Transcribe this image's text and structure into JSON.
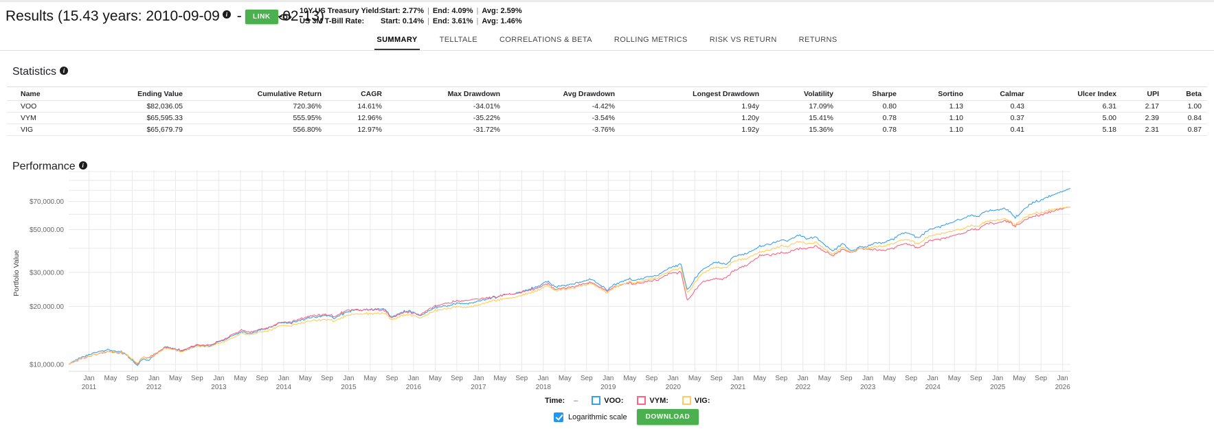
{
  "header": {
    "title": "Results",
    "period_prefix": "(15.43 years: 2010-09-09",
    "period_suffix": " - 2026-02-13)",
    "link_button": "LINK",
    "rates_separator": "|",
    "rates": [
      {
        "label": "10Y US Treasury Yield:",
        "start": "Start: 2.77%",
        "end": "End: 4.09%",
        "avg": "Avg: 2.59%"
      },
      {
        "label": "US 3M T-Bill Rate:",
        "start": "Start: 0.14%",
        "end": "End: 3.61%",
        "avg": "Avg: 1.46%"
      }
    ]
  },
  "tabs": {
    "items": [
      "SUMMARY",
      "TELLTALE",
      "CORRELATIONS & BETA",
      "ROLLING METRICS",
      "RISK VS RETURN",
      "RETURNS"
    ],
    "active": "SUMMARY"
  },
  "statistics": {
    "heading": "Statistics",
    "columns": [
      "Name",
      "Ending Value",
      "Cumulative Return",
      "CAGR",
      "Max Drawdown",
      "Avg Drawdown",
      "Longest Drawdown",
      "Volatility",
      "Sharpe",
      "Sortino",
      "Calmar",
      "Ulcer Index",
      "UPI",
      "Beta"
    ],
    "rows": [
      [
        "VOO",
        "$82,036.05",
        "720.36%",
        "14.61%",
        "-34.01%",
        "-4.42%",
        "1.94y",
        "17.09%",
        "0.80",
        "1.13",
        "0.43",
        "6.31",
        "2.17",
        "1.00"
      ],
      [
        "VYM",
        "$65,595.33",
        "555.95%",
        "12.96%",
        "-35.22%",
        "-3.54%",
        "1.20y",
        "15.41%",
        "0.78",
        "1.10",
        "0.37",
        "5.00",
        "2.39",
        "0.84"
      ],
      [
        "VIG",
        "$65,679.79",
        "556.80%",
        "12.97%",
        "-31.72%",
        "-3.76%",
        "1.92y",
        "15.36%",
        "0.78",
        "1.10",
        "0.41",
        "5.18",
        "2.31",
        "0.87"
      ]
    ]
  },
  "performance": {
    "heading": "Performance"
  },
  "chart_data": {
    "type": "line",
    "title": "Performance",
    "y_axis_label": "Portfolio Value",
    "y_scale": "log",
    "x_start_date": "2010-09-09",
    "x_end_date": "2026-02-13",
    "x_range": [
      2010.688,
      2026.12
    ],
    "month_tick_labels": [
      "Jan",
      "May",
      "Sep"
    ],
    "year_ticks": [
      2011,
      2012,
      2013,
      2014,
      2015,
      2016,
      2017,
      2018,
      2019,
      2020,
      2021,
      2022,
      2023,
      2024,
      2025,
      2026
    ],
    "y_ticks": [
      {
        "value": 10000,
        "label": "$10,000.00"
      },
      {
        "value": 20000,
        "label": "$20,000.00"
      },
      {
        "value": 30000,
        "label": "$30,000.00"
      },
      {
        "value": 50000,
        "label": "$50,000.00"
      },
      {
        "value": 70000,
        "label": "$70,000.00"
      }
    ],
    "series": [
      {
        "name": "VOO",
        "color": "#36a2eb",
        "col": 1
      },
      {
        "name": "VYM",
        "color": "#ff6384",
        "col": 2
      },
      {
        "name": "VIG",
        "color": "#ffce56",
        "col": 3
      }
    ],
    "anchors": [
      [
        2010.688,
        10000,
        10000,
        10000
      ],
      [
        2010.8,
        10600,
        10450,
        10500
      ],
      [
        2010.92,
        11000,
        10800,
        10850
      ],
      [
        2011.12,
        11650,
        11350,
        11400
      ],
      [
        2011.33,
        11900,
        11650,
        11700
      ],
      [
        2011.55,
        11500,
        11400,
        11450
      ],
      [
        2011.63,
        10700,
        10800,
        10850
      ],
      [
        2011.75,
        9950,
        10150,
        10250
      ],
      [
        2011.83,
        10700,
        10900,
        10950
      ],
      [
        2011.92,
        10500,
        10800,
        10800
      ],
      [
        2012.0,
        11100,
        11300,
        11150
      ],
      [
        2012.18,
        12400,
        12250,
        12150
      ],
      [
        2012.42,
        11700,
        11800,
        11600
      ],
      [
        2012.6,
        12300,
        12450,
        12200
      ],
      [
        2012.7,
        12600,
        12700,
        12450
      ],
      [
        2012.85,
        12400,
        12550,
        12300
      ],
      [
        2012.95,
        12900,
        12950,
        12700
      ],
      [
        2013.15,
        13700,
        13900,
        13400
      ],
      [
        2013.35,
        14800,
        15050,
        14500
      ],
      [
        2013.48,
        14400,
        14650,
        14200
      ],
      [
        2013.65,
        15100,
        15200,
        14700
      ],
      [
        2013.8,
        15600,
        15700,
        15100
      ],
      [
        2013.95,
        16400,
        16500,
        15900
      ],
      [
        2014.1,
        16300,
        16500,
        15800
      ],
      [
        2014.25,
        16900,
        17200,
        16300
      ],
      [
        2014.45,
        17600,
        17950,
        16900
      ],
      [
        2014.7,
        17900,
        18100,
        17100
      ],
      [
        2014.78,
        17400,
        17700,
        16700
      ],
      [
        2014.95,
        18600,
        18950,
        17800
      ],
      [
        2015.12,
        19200,
        19250,
        18300
      ],
      [
        2015.4,
        19300,
        19200,
        18350
      ],
      [
        2015.55,
        19400,
        19100,
        18400
      ],
      [
        2015.62,
        18300,
        18000,
        17600
      ],
      [
        2015.67,
        17500,
        17300,
        16900
      ],
      [
        2015.85,
        18900,
        18700,
        18100
      ],
      [
        2015.95,
        18800,
        18600,
        18000
      ],
      [
        2016.1,
        17900,
        18100,
        17400
      ],
      [
        2016.3,
        19500,
        19900,
        18900
      ],
      [
        2016.52,
        20300,
        20900,
        19600
      ],
      [
        2016.7,
        20700,
        21300,
        19900
      ],
      [
        2016.85,
        20700,
        21500,
        19800
      ],
      [
        2016.95,
        21100,
        21850,
        20200
      ],
      [
        2017.2,
        22200,
        22300,
        21300
      ],
      [
        2017.45,
        23000,
        23050,
        22000
      ],
      [
        2017.7,
        23900,
        23700,
        22900
      ],
      [
        2017.95,
        25700,
        25200,
        24500
      ],
      [
        2018.07,
        27200,
        26400,
        25800
      ],
      [
        2018.18,
        25100,
        24500,
        24100
      ],
      [
        2018.25,
        25500,
        24800,
        24400
      ],
      [
        2018.5,
        26200,
        25300,
        25000
      ],
      [
        2018.73,
        27700,
        26700,
        26300
      ],
      [
        2018.9,
        25600,
        24900,
        24500
      ],
      [
        2018.98,
        24200,
        23900,
        23500
      ],
      [
        2019.1,
        26000,
        25300,
        25100
      ],
      [
        2019.33,
        27900,
        26600,
        26900
      ],
      [
        2019.42,
        27200,
        26100,
        26400
      ],
      [
        2019.58,
        28500,
        27000,
        27600
      ],
      [
        2019.75,
        28900,
        27400,
        28100
      ],
      [
        2019.95,
        31700,
        29700,
        30500
      ],
      [
        2020.12,
        33100,
        30100,
        31600
      ],
      [
        2020.22,
        24200,
        21400,
        23400
      ],
      [
        2020.35,
        28300,
        24500,
        27000
      ],
      [
        2020.45,
        30900,
        26600,
        29600
      ],
      [
        2020.65,
        33900,
        27900,
        32000
      ],
      [
        2020.75,
        33500,
        27700,
        31700
      ],
      [
        2020.83,
        33200,
        28300,
        31800
      ],
      [
        2020.95,
        36600,
        30900,
        34700
      ],
      [
        2021.1,
        37200,
        32300,
        35000
      ],
      [
        2021.35,
        41100,
        36800,
        38400
      ],
      [
        2021.55,
        42800,
        37400,
        40000
      ],
      [
        2021.7,
        44500,
        38200,
        41500
      ],
      [
        2021.75,
        43600,
        37900,
        40700
      ],
      [
        2021.95,
        47100,
        40000,
        43600
      ],
      [
        2022.05,
        44700,
        39700,
        42000
      ],
      [
        2022.2,
        46000,
        41200,
        43100
      ],
      [
        2022.35,
        41500,
        38500,
        39600
      ],
      [
        2022.45,
        38700,
        36600,
        37400
      ],
      [
        2022.62,
        42300,
        39500,
        40500
      ],
      [
        2022.75,
        38600,
        37900,
        38100
      ],
      [
        2022.88,
        40900,
        40300,
        40200
      ],
      [
        2022.95,
        40600,
        39800,
        39800
      ],
      [
        2023.1,
        42500,
        39500,
        40800
      ],
      [
        2023.25,
        42800,
        39000,
        40900
      ],
      [
        2023.4,
        44700,
        39900,
        42200
      ],
      [
        2023.55,
        48600,
        42700,
        44700
      ],
      [
        2023.78,
        45600,
        40100,
        42300
      ],
      [
        2023.95,
        50200,
        44000,
        46500
      ],
      [
        2024.1,
        51500,
        44400,
        47200
      ],
      [
        2024.3,
        54500,
        46300,
        49100
      ],
      [
        2024.5,
        57800,
        48200,
        51000
      ],
      [
        2024.6,
        59500,
        50500,
        52600
      ],
      [
        2024.7,
        58700,
        50200,
        52100
      ],
      [
        2024.83,
        62500,
        54000,
        55600
      ],
      [
        2024.95,
        63000,
        53700,
        55800
      ],
      [
        2025.12,
        64300,
        55700,
        57000
      ],
      [
        2025.2,
        61500,
        54200,
        55000
      ],
      [
        2025.27,
        57500,
        51900,
        52900
      ],
      [
        2025.4,
        63500,
        55600,
        57200
      ],
      [
        2025.5,
        68100,
        58100,
        60100
      ],
      [
        2025.65,
        70900,
        59600,
        61400
      ],
      [
        2025.75,
        73600,
        61100,
        62600
      ],
      [
        2025.85,
        75200,
        62300,
        63500
      ],
      [
        2025.92,
        77600,
        63600,
        64600
      ],
      [
        2026.0,
        79200,
        64600,
        65100
      ],
      [
        2026.06,
        80500,
        65100,
        65400
      ],
      [
        2026.12,
        82036,
        65595,
        65680
      ]
    ]
  },
  "legend": {
    "time_label": "Time:",
    "time_value": "–",
    "items": [
      {
        "label": "VOO:",
        "color": "#36a2eb"
      },
      {
        "label": "VYM:",
        "color": "#ff6384"
      },
      {
        "label": "VIG:",
        "color": "#ffce56"
      }
    ]
  },
  "controls": {
    "log_scale_label": "Logarithmic scale",
    "log_scale_checked": true,
    "download_label": "DOWNLOAD"
  },
  "colors": {
    "accent_green": "#4caf50",
    "checkbox_blue": "#2196f3",
    "gridline": "#e8e8e8"
  }
}
